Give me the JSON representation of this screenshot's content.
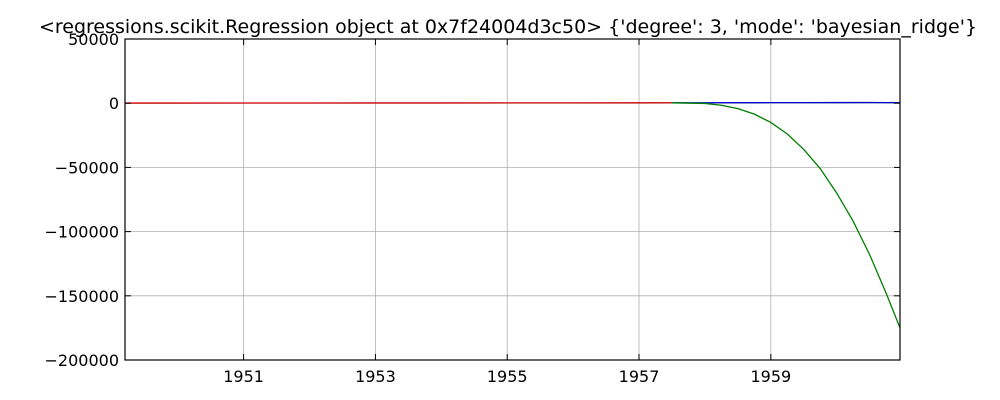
{
  "chart_data": {
    "type": "line",
    "title": "<regressions.scikit.Regression object at 0x7f24004d3c50> {'degree': 3, 'mode': 'bayesian_ridge'}",
    "xlabel": "",
    "ylabel": "",
    "xlim": [
      1949.2,
      1960.96
    ],
    "ylim": [
      -200000,
      50000
    ],
    "grid": true,
    "x_ticks": [
      1951,
      1953,
      1955,
      1957,
      1959
    ],
    "y_ticks": [
      50000,
      0,
      -50000,
      -100000,
      -150000,
      -200000
    ],
    "x_tick_labels": [
      "1951",
      "1953",
      "1955",
      "1957",
      "1959"
    ],
    "y_tick_labels": [
      "50000",
      "0",
      "−50000",
      "−100000",
      "−150000",
      "−200000"
    ],
    "series": [
      {
        "color": "#cc0000",
        "x": [
          1949.2,
          1950.0,
          1951.0,
          1952.0,
          1953.0,
          1954.0,
          1955.0,
          1956.0,
          1957.0,
          1957.5
        ],
        "y": [
          112,
          118,
          145,
          171,
          196,
          204,
          242,
          284,
          315,
          340
        ]
      },
      {
        "color": "#0000cc",
        "x": [
          1957.5,
          1958.0,
          1958.5,
          1959.0,
          1959.5,
          1960.0,
          1960.5,
          1960.96
        ],
        "y": [
          340,
          360,
          380,
          420,
          460,
          480,
          520,
          450
        ]
      },
      {
        "color": "#007f00",
        "x": [
          1957.5,
          1958.0,
          1958.25,
          1958.5,
          1958.75,
          1959.0,
          1959.25,
          1959.5,
          1959.75,
          1960.0,
          1960.25,
          1960.5,
          1960.75,
          1960.96
        ],
        "y": [
          300,
          -200,
          -1600,
          -4200,
          -8500,
          -15000,
          -24000,
          -36000,
          -51000,
          -70000,
          -92000,
          -118000,
          -148000,
          -175000
        ]
      }
    ]
  }
}
